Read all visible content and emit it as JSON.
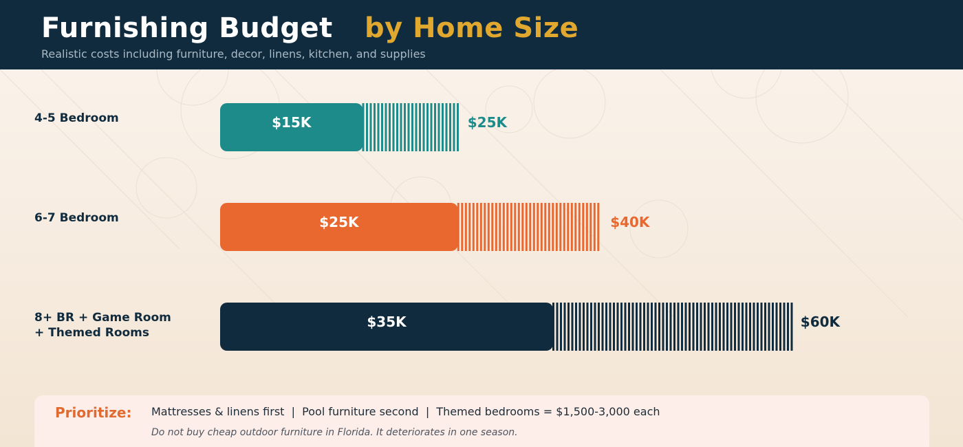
{
  "header": {
    "title_main": "Furnishing Budget",
    "title_accent": "by Home Size",
    "subtitle": "Realistic costs including furniture, decor, linens, kitchen, and supplies"
  },
  "chart_data": {
    "type": "bar",
    "orientation": "horizontal",
    "style": "range bars: solid segment = low estimate, striped segment = extends to high estimate",
    "title": "Furnishing Budget by Home Size",
    "subtitle": "Realistic costs including furniture, decor, linens, kitchen, and supplies",
    "xlabel": "",
    "ylabel": "",
    "grid": false,
    "legend": "none",
    "xlim": [
      0,
      60
    ],
    "value_unit": "$K",
    "categories": [
      [
        "4-5 Bedroom"
      ],
      [
        "6-7 Bedroom"
      ],
      [
        "8+ BR + Game Room",
        "+ Themed Rooms"
      ]
    ],
    "series": [
      {
        "values": [
          15,
          25,
          35
        ],
        "labels": [
          "$15K",
          "$25K",
          "$35K"
        ]
      },
      {
        "values": [
          25,
          40,
          60
        ],
        "labels": [
          "$25K",
          "$40K",
          "$60K"
        ]
      }
    ],
    "colors": [
      "#1e8b8b",
      "#e86830",
      "#112b3e"
    ]
  },
  "footer": {
    "prioritize_label": "Prioritize:",
    "priorities": "Mattresses & linens first  |  Pool furniture second  |  Themed bedrooms = $1,500-3,000 each",
    "note": "Do not buy cheap outdoor furniture in Florida. It deteriorates in one season."
  }
}
